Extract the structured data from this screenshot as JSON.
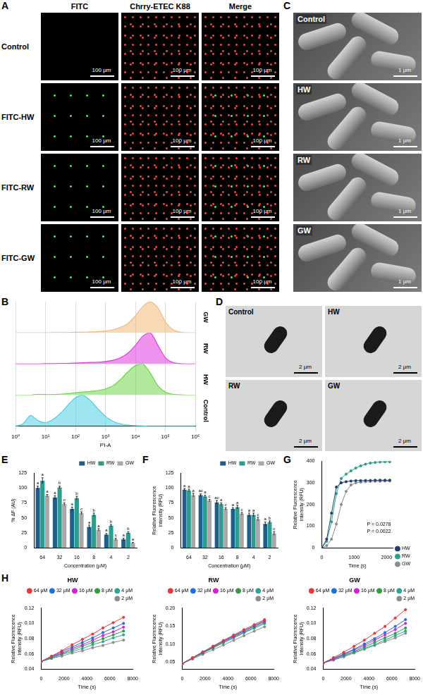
{
  "fluorescence": {
    "panel": "A",
    "columns": [
      "FITC",
      "Chrry-ETEC K88",
      "Merge"
    ],
    "rows": [
      "Control",
      "FITC-HW",
      "FITC-RW",
      "FITC-GW"
    ],
    "scale_bar": "100 μm"
  },
  "sem": {
    "panel": "C",
    "labels": [
      "Control",
      "HW",
      "RW",
      "GW"
    ],
    "scale_bar": "1 μm"
  },
  "tem": {
    "panel": "D",
    "labels": [
      "Control",
      "HW",
      "RW",
      "GW"
    ],
    "scale_bar": "2 μm"
  },
  "chart_data": [
    {
      "panel": "B",
      "type": "area",
      "x_label": "PI-A",
      "log": "x",
      "x": [
        1,
        1.78,
        3.16,
        5.62,
        10,
        17.8,
        31.6,
        56.2,
        100,
        178,
        316,
        562,
        1000,
        1780,
        3160,
        5620,
        10000,
        17800,
        31600,
        56200,
        100000,
        178000,
        316000,
        562000,
        1000000
      ],
      "xlim": [
        1,
        1000000
      ],
      "xticks": [
        {
          "value": 1,
          "label": "10⁰"
        },
        {
          "value": 10,
          "label": "10¹"
        },
        {
          "value": 100,
          "label": "10²"
        },
        {
          "value": 1000,
          "label": "10³"
        },
        {
          "value": 10000,
          "label": "10⁴"
        },
        {
          "value": 100000,
          "label": "10⁵"
        },
        {
          "value": 1000000,
          "label": "10⁶"
        }
      ],
      "ylim": [
        0,
        100
      ],
      "tick_labels": "x",
      "grid": true,
      "series": [
        {
          "name": "Control",
          "color": "#4fd0e4",
          "values": [
            0,
            8,
            35,
            18,
            12,
            22,
            42,
            68,
            92,
            100,
            82,
            56,
            32,
            16,
            8,
            4,
            2,
            1,
            0,
            0,
            0,
            0,
            0,
            0,
            0
          ]
        },
        {
          "name": "HW",
          "color": "#6fd64a",
          "values": [
            0,
            0,
            0,
            3,
            2,
            2,
            3,
            5,
            8,
            10,
            12,
            15,
            20,
            30,
            50,
            75,
            95,
            100,
            70,
            30,
            10,
            3,
            1,
            0,
            0
          ]
        },
        {
          "name": "RW",
          "color": "#e03ce0",
          "values": [
            0,
            0,
            0,
            0,
            1,
            1,
            2,
            2,
            3,
            4,
            5,
            6,
            8,
            12,
            20,
            35,
            60,
            90,
            100,
            60,
            20,
            5,
            1,
            0,
            0
          ]
        },
        {
          "name": "GW",
          "color": "#f2b97a",
          "values": [
            0,
            0,
            0,
            0,
            0,
            1,
            1,
            1,
            2,
            2,
            3,
            4,
            6,
            10,
            18,
            30,
            55,
            85,
            100,
            80,
            35,
            10,
            2,
            0,
            0
          ]
        }
      ]
    },
    {
      "panel": "E",
      "type": "bar",
      "x_label": "Concentration (μM)",
      "y_label": "% ΔF (AU)",
      "categories": [
        "64",
        "32",
        "16",
        "8",
        "4",
        "2"
      ],
      "ylim": [
        0,
        125
      ],
      "yticks": [
        0,
        25,
        50,
        75,
        100,
        125
      ],
      "grid": false,
      "legend": "top",
      "series": [
        {
          "name": "HW",
          "color": "#1f5f8b",
          "values": [
            100,
            84,
            65,
            35,
            22,
            14
          ],
          "errors": [
            3,
            3,
            3,
            3,
            2,
            2
          ],
          "letters": [
            "a",
            "a",
            "a",
            "a",
            "a",
            "a"
          ]
        },
        {
          "name": "RW",
          "color": "#2a9d8f",
          "values": [
            112,
            101,
            83,
            55,
            37,
            25
          ],
          "errors": [
            5,
            2,
            3,
            3,
            2,
            2
          ],
          "letters": [
            "a",
            "b",
            "b",
            "b",
            "b",
            "b"
          ]
        },
        {
          "name": "GW",
          "color": "#a8a8a8",
          "values": [
            87,
            73,
            58,
            30,
            14,
            8
          ],
          "errors": [
            2,
            2,
            2,
            2,
            2,
            1
          ],
          "letters": [
            "a",
            "c",
            "c",
            "a",
            "c",
            "a"
          ]
        }
      ]
    },
    {
      "panel": "F",
      "type": "bar",
      "x_label": "Concentration (μM)",
      "y_label": "Relative Fluorescence Intensity (RFU)",
      "categories": [
        "64",
        "32",
        "16",
        "8",
        "4",
        "2"
      ],
      "ylim": [
        0,
        125
      ],
      "yticks": [
        0,
        25,
        50,
        75,
        100,
        125
      ],
      "grid": false,
      "legend": "top",
      "series": [
        {
          "name": "HW",
          "color": "#1f5f8b",
          "values": [
            97,
            88,
            76,
            65,
            55,
            40
          ],
          "errors": [
            2,
            2,
            3,
            2,
            3,
            3
          ],
          "letters": [
            "a",
            "ac",
            "ac",
            "a",
            "a",
            "a"
          ]
        },
        {
          "name": "RW",
          "color": "#2a9d8f",
          "values": [
            96,
            86,
            73,
            68,
            55,
            43
          ],
          "errors": [
            2,
            2,
            2,
            3,
            3,
            2
          ],
          "letters": [
            "a",
            "a",
            "a",
            "a",
            "a",
            "b"
          ]
        },
        {
          "name": "GW",
          "color": "#a8a8a8",
          "values": [
            88,
            79,
            65,
            57,
            48,
            24
          ],
          "errors": [
            3,
            2,
            2,
            2,
            3,
            3
          ],
          "letters": [
            "a",
            "c",
            "c",
            "c",
            "c",
            "c"
          ]
        }
      ]
    },
    {
      "panel": "G",
      "type": "line",
      "x_label": "Time (s)",
      "y_label": "Relative Fluorescence Intensity (RFU)",
      "x": [
        0,
        150,
        300,
        450,
        600,
        750,
        900,
        1050,
        1200,
        1350,
        1500,
        1650,
        1800,
        1950,
        2100
      ],
      "xlim": [
        0,
        2200
      ],
      "xticks": [
        0,
        1000,
        2000
      ],
      "ylim": [
        0,
        400
      ],
      "yticks": [
        0,
        100,
        200,
        300,
        400
      ],
      "grid": false,
      "legend": "right",
      "marker": "circle",
      "line_style": "solid",
      "annotations": [
        "P = 0.0278",
        "P = 0.0022"
      ],
      "series": [
        {
          "name": "HW",
          "color": "#1f3f74",
          "values": [
            0,
            40,
            160,
            280,
            300,
            305,
            308,
            310,
            310,
            311,
            311,
            312,
            312,
            312,
            312
          ]
        },
        {
          "name": "RW",
          "color": "#2a9d8f",
          "values": [
            0,
            30,
            120,
            250,
            320,
            340,
            355,
            368,
            378,
            386,
            391,
            394,
            396,
            397,
            397
          ]
        },
        {
          "name": "GW",
          "color": "#8c8c8c",
          "values": [
            0,
            10,
            40,
            110,
            200,
            260,
            290,
            300,
            303,
            305,
            306,
            307,
            307,
            308,
            308
          ]
        }
      ]
    },
    {
      "panel": "H",
      "type": "line",
      "title": "HW",
      "x_label": "Time (s)",
      "y_label": "Relative Fluorescence Intensity (RFU)",
      "x": [
        0,
        900,
        1800,
        2700,
        3600,
        4500,
        5400,
        6300,
        7200
      ],
      "xlim": [
        0,
        8000
      ],
      "xticks": [
        0,
        2000,
        4000,
        6000,
        8000
      ],
      "ylim": [
        0.04,
        0.12
      ],
      "yticks": [
        0.04,
        0.06,
        0.08,
        {
          "value": 0.1,
          "label": "0.10"
        },
        0.12
      ],
      "grid": false,
      "legend": "top",
      "marker": "circle",
      "line_style": "solid",
      "series": [
        {
          "name": "64 μM",
          "color": "#e53935",
          "values": [
            0.05,
            0.057,
            0.064,
            0.072,
            0.079,
            0.086,
            0.094,
            0.101,
            0.108
          ]
        },
        {
          "name": "32 μM",
          "color": "#1e6fe0",
          "values": [
            0.05,
            0.056,
            0.063,
            0.069,
            0.075,
            0.081,
            0.088,
            0.094,
            0.1
          ]
        },
        {
          "name": "16 μM",
          "color": "#d81bd8",
          "values": [
            0.05,
            0.056,
            0.061,
            0.067,
            0.072,
            0.078,
            0.084,
            0.089,
            0.095
          ]
        },
        {
          "name": "8 μM",
          "color": "#2e9d3a",
          "values": [
            0.05,
            0.055,
            0.06,
            0.065,
            0.07,
            0.075,
            0.08,
            0.085,
            0.09
          ]
        },
        {
          "name": "4 μM",
          "color": "#26a69a",
          "values": [
            0.05,
            0.054,
            0.059,
            0.063,
            0.067,
            0.072,
            0.076,
            0.081,
            0.085
          ]
        },
        {
          "name": "2 μM",
          "color": "#8d8d8d",
          "values": [
            0.05,
            0.054,
            0.057,
            0.061,
            0.064,
            0.068,
            0.071,
            0.075,
            0.078
          ]
        }
      ]
    },
    {
      "type": "line",
      "title": "RW",
      "x_label": "Time (s)",
      "y_label": "Relative Fluorescence Intensity (RFU)",
      "x": [
        0,
        900,
        1800,
        2700,
        3600,
        4500,
        5400,
        6300,
        7200
      ],
      "xlim": [
        0,
        8000
      ],
      "xticks": [
        0,
        2000,
        4000,
        6000,
        8000
      ],
      "ylim": [
        0.03,
        0.2
      ],
      "yticks": [
        0.05,
        {
          "value": 0.1,
          "label": "0.10"
        },
        0.15,
        {
          "value": 0.2,
          "label": "0.20"
        }
      ],
      "grid": false,
      "legend": "top",
      "marker": "circle",
      "line_style": "solid",
      "series": [
        {
          "name": "64 μM",
          "color": "#e53935",
          "values": [
            0.045,
            0.062,
            0.078,
            0.094,
            0.11,
            0.125,
            0.14,
            0.154,
            0.168
          ]
        },
        {
          "name": "32 μM",
          "color": "#1e6fe0",
          "values": [
            0.045,
            0.061,
            0.077,
            0.093,
            0.108,
            0.123,
            0.137,
            0.151,
            0.165
          ]
        },
        {
          "name": "16 μM",
          "color": "#d81bd8",
          "values": [
            0.045,
            0.061,
            0.076,
            0.092,
            0.107,
            0.121,
            0.136,
            0.15,
            0.163
          ]
        },
        {
          "name": "8 μM",
          "color": "#2e9d3a",
          "values": [
            0.045,
            0.06,
            0.075,
            0.09,
            0.105,
            0.119,
            0.133,
            0.147,
            0.16
          ]
        },
        {
          "name": "4 μM",
          "color": "#26a69a",
          "values": [
            0.045,
            0.06,
            0.074,
            0.089,
            0.103,
            0.117,
            0.131,
            0.144,
            0.157
          ]
        },
        {
          "name": "2 μM",
          "color": "#8d8d8d",
          "values": [
            0.045,
            0.058,
            0.071,
            0.084,
            0.097,
            0.11,
            0.123,
            0.136,
            0.148
          ]
        }
      ]
    },
    {
      "type": "line",
      "title": "GW",
      "x_label": "Time (s)",
      "y_label": "Relative Fluorescence Intensity (RFU)",
      "x": [
        0,
        900,
        1800,
        2700,
        3600,
        4500,
        5400,
        6300,
        7200
      ],
      "xlim": [
        0,
        8000
      ],
      "xticks": [
        0,
        2000,
        4000,
        6000,
        8000
      ],
      "ylim": [
        0.04,
        0.12
      ],
      "yticks": [
        0.04,
        0.06,
        0.08,
        {
          "value": 0.1,
          "label": "0.10"
        },
        0.12
      ],
      "grid": false,
      "legend": "top",
      "marker": "circle",
      "line_style": "solid",
      "series": [
        {
          "name": "64 μM",
          "color": "#e53935",
          "values": [
            0.048,
            0.055,
            0.062,
            0.07,
            0.078,
            0.087,
            0.096,
            0.107,
            0.118
          ]
        },
        {
          "name": "32 μM",
          "color": "#1e6fe0",
          "values": [
            0.048,
            0.054,
            0.06,
            0.066,
            0.073,
            0.08,
            0.088,
            0.096,
            0.105
          ]
        },
        {
          "name": "16 μM",
          "color": "#d81bd8",
          "values": [
            0.048,
            0.053,
            0.059,
            0.065,
            0.071,
            0.078,
            0.085,
            0.092,
            0.1
          ]
        },
        {
          "name": "8 μM",
          "color": "#2e9d3a",
          "values": [
            0.048,
            0.053,
            0.058,
            0.063,
            0.069,
            0.075,
            0.081,
            0.087,
            0.094
          ]
        },
        {
          "name": "4 μM",
          "color": "#26a69a",
          "values": [
            0.048,
            0.052,
            0.057,
            0.062,
            0.067,
            0.072,
            0.078,
            0.084,
            0.09
          ]
        },
        {
          "name": "2 μM",
          "color": "#8d8d8d",
          "values": [
            0.048,
            0.052,
            0.056,
            0.061,
            0.066,
            0.071,
            0.076,
            0.081,
            0.087
          ]
        }
      ]
    }
  ]
}
